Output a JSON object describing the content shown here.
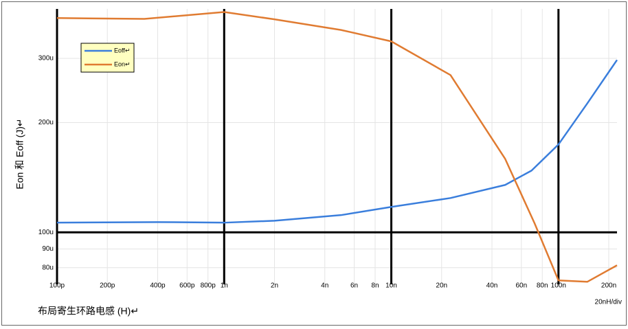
{
  "chart_data": {
    "type": "line",
    "xlabel": "布局寄生环路电感 (H)↵",
    "ylabel": "Eon 和 Eoff (J)↵",
    "annotation": "20nH/div",
    "xscale": "log",
    "yscale": "log",
    "grid": true,
    "legend": "upper left",
    "xlim": [
      1e-10,
      2.24e-07
    ],
    "ylim": [
      7.2e-05,
      0.00041
    ],
    "xticks": [
      {
        "value": 1e-10,
        "label": "100p"
      },
      {
        "value": 2e-10,
        "label": "200p"
      },
      {
        "value": 4e-10,
        "label": "400p"
      },
      {
        "value": 6e-10,
        "label": "600p"
      },
      {
        "value": 8e-10,
        "label": "800p"
      },
      {
        "value": 1e-09,
        "label": "1n"
      },
      {
        "value": 2e-09,
        "label": "2n"
      },
      {
        "value": 4e-09,
        "label": "4n"
      },
      {
        "value": 6e-09,
        "label": "6n"
      },
      {
        "value": 8e-09,
        "label": "8n"
      },
      {
        "value": 1e-08,
        "label": "10n"
      },
      {
        "value": 2e-08,
        "label": "20n"
      },
      {
        "value": 4e-08,
        "label": "40n"
      },
      {
        "value": 6e-08,
        "label": "60n"
      },
      {
        "value": 8e-08,
        "label": "80n"
      },
      {
        "value": 1e-07,
        "label": "100n"
      },
      {
        "value": 2e-07,
        "label": "200n"
      }
    ],
    "yticks": [
      {
        "value": 8e-05,
        "label": "80u"
      },
      {
        "value": 9e-05,
        "label": "90u"
      },
      {
        "value": 0.0001,
        "label": "100u"
      },
      {
        "value": 0.0002,
        "label": "200u"
      },
      {
        "value": 0.0003,
        "label": "300u"
      }
    ],
    "series": [
      {
        "name": "Eoff↵",
        "color": "#3a7edc",
        "x": [
          1e-10,
          4e-10,
          1e-09,
          2e-09,
          5e-09,
          1e-08,
          2.26e-08,
          4.8e-08,
          6.9e-08,
          1e-07,
          1.49e-07,
          2.24e-07
        ],
        "values": [
          0.0001063,
          0.0001067,
          0.0001063,
          0.0001076,
          0.0001115,
          0.0001174,
          0.0001242,
          0.0001349,
          0.0001477,
          0.0001742,
          0.000226,
          0.000297
        ]
      },
      {
        "name": "Eon↵",
        "color": "#e07b31",
        "x": [
          1e-10,
          3.33e-10,
          1e-09,
          2e-09,
          5e-09,
          1e-08,
          2.26e-08,
          4.8e-08,
          7.2e-08,
          1e-07,
          1.49e-07,
          2.24e-07
        ],
        "values": [
          0.000387,
          0.000385,
          0.000402,
          0.000384,
          0.000359,
          0.000334,
          0.00027,
          0.000159,
          0.0001058,
          7.38e-05,
          7.32e-05,
          8.12e-05
        ]
      }
    ]
  }
}
